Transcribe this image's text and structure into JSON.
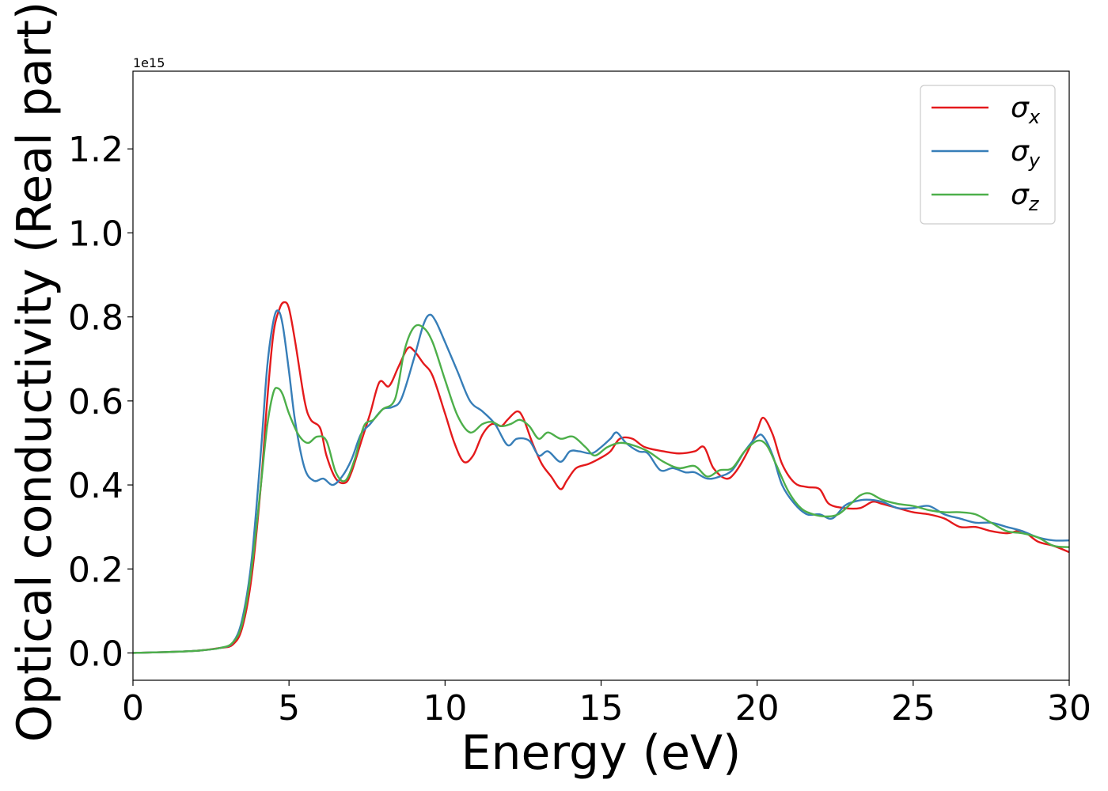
{
  "chart_data": {
    "type": "line",
    "xlabel": "Energy (eV)",
    "ylabel": "Optical conductivity (Real part)",
    "offset_text": "1e15",
    "xlim": [
      0,
      30
    ],
    "ylim": [
      -0.065,
      1.385
    ],
    "x_ticks": [
      0,
      5,
      10,
      15,
      20,
      25,
      30
    ],
    "x_tick_labels": [
      "0",
      "5",
      "10",
      "15",
      "20",
      "25",
      "30"
    ],
    "y_ticks": [
      0.0,
      0.2,
      0.4,
      0.6,
      0.8,
      1.0,
      1.2
    ],
    "y_tick_labels": [
      "0.0",
      "0.2",
      "0.4",
      "0.6",
      "0.8",
      "1.0",
      "1.2"
    ],
    "grid": false,
    "legend_position": "top-right",
    "series": [
      {
        "name": "σ",
        "subscript": "x",
        "color": "#e41a1c",
        "points": [
          [
            0,
            0
          ],
          [
            1,
            0.002
          ],
          [
            2,
            0.005
          ],
          [
            2.8,
            0.012
          ],
          [
            3.2,
            0.02
          ],
          [
            3.5,
            0.06
          ],
          [
            3.8,
            0.18
          ],
          [
            4.1,
            0.4
          ],
          [
            4.3,
            0.6
          ],
          [
            4.5,
            0.76
          ],
          [
            4.7,
            0.82
          ],
          [
            4.85,
            0.835
          ],
          [
            5.0,
            0.82
          ],
          [
            5.2,
            0.74
          ],
          [
            5.5,
            0.6
          ],
          [
            5.7,
            0.555
          ],
          [
            6.0,
            0.535
          ],
          [
            6.2,
            0.47
          ],
          [
            6.5,
            0.415
          ],
          [
            6.8,
            0.405
          ],
          [
            7.0,
            0.43
          ],
          [
            7.3,
            0.5
          ],
          [
            7.6,
            0.57
          ],
          [
            7.9,
            0.645
          ],
          [
            8.2,
            0.635
          ],
          [
            8.5,
            0.68
          ],
          [
            8.8,
            0.725
          ],
          [
            9.0,
            0.72
          ],
          [
            9.3,
            0.69
          ],
          [
            9.6,
            0.66
          ],
          [
            10.0,
            0.57
          ],
          [
            10.3,
            0.5
          ],
          [
            10.6,
            0.455
          ],
          [
            10.9,
            0.47
          ],
          [
            11.2,
            0.52
          ],
          [
            11.5,
            0.545
          ],
          [
            11.8,
            0.54
          ],
          [
            12.0,
            0.555
          ],
          [
            12.3,
            0.575
          ],
          [
            12.5,
            0.56
          ],
          [
            12.8,
            0.5
          ],
          [
            13.1,
            0.45
          ],
          [
            13.4,
            0.42
          ],
          [
            13.7,
            0.39
          ],
          [
            13.9,
            0.41
          ],
          [
            14.2,
            0.44
          ],
          [
            14.6,
            0.45
          ],
          [
            15.0,
            0.465
          ],
          [
            15.3,
            0.48
          ],
          [
            15.6,
            0.51
          ],
          [
            16.0,
            0.51
          ],
          [
            16.4,
            0.49
          ],
          [
            17.0,
            0.48
          ],
          [
            17.5,
            0.475
          ],
          [
            18.0,
            0.48
          ],
          [
            18.3,
            0.49
          ],
          [
            18.6,
            0.44
          ],
          [
            19.0,
            0.415
          ],
          [
            19.3,
            0.43
          ],
          [
            19.7,
            0.48
          ],
          [
            20.0,
            0.53
          ],
          [
            20.2,
            0.56
          ],
          [
            20.5,
            0.52
          ],
          [
            20.8,
            0.45
          ],
          [
            21.2,
            0.405
          ],
          [
            21.6,
            0.395
          ],
          [
            22.0,
            0.39
          ],
          [
            22.3,
            0.355
          ],
          [
            22.8,
            0.345
          ],
          [
            23.3,
            0.345
          ],
          [
            23.7,
            0.36
          ],
          [
            24.0,
            0.355
          ],
          [
            24.5,
            0.345
          ],
          [
            25.0,
            0.335
          ],
          [
            25.5,
            0.33
          ],
          [
            26.0,
            0.32
          ],
          [
            26.5,
            0.3
          ],
          [
            27.0,
            0.3
          ],
          [
            27.5,
            0.29
          ],
          [
            28.0,
            0.285
          ],
          [
            28.5,
            0.29
          ],
          [
            29.0,
            0.265
          ],
          [
            29.5,
            0.255
          ],
          [
            30,
            0.24
          ]
        ]
      },
      {
        "name": "σ",
        "subscript": "y",
        "color": "#377eb8",
        "points": [
          [
            0,
            0
          ],
          [
            1,
            0.002
          ],
          [
            2,
            0.005
          ],
          [
            2.8,
            0.012
          ],
          [
            3.2,
            0.025
          ],
          [
            3.5,
            0.08
          ],
          [
            3.8,
            0.22
          ],
          [
            4.1,
            0.48
          ],
          [
            4.3,
            0.68
          ],
          [
            4.5,
            0.79
          ],
          [
            4.65,
            0.815
          ],
          [
            4.8,
            0.78
          ],
          [
            5.0,
            0.67
          ],
          [
            5.2,
            0.55
          ],
          [
            5.5,
            0.44
          ],
          [
            5.8,
            0.41
          ],
          [
            6.1,
            0.415
          ],
          [
            6.4,
            0.4
          ],
          [
            6.7,
            0.42
          ],
          [
            7.0,
            0.46
          ],
          [
            7.3,
            0.52
          ],
          [
            7.6,
            0.545
          ],
          [
            8.0,
            0.58
          ],
          [
            8.3,
            0.585
          ],
          [
            8.6,
            0.605
          ],
          [
            9.0,
            0.7
          ],
          [
            9.3,
            0.78
          ],
          [
            9.5,
            0.805
          ],
          [
            9.7,
            0.79
          ],
          [
            10.0,
            0.74
          ],
          [
            10.4,
            0.67
          ],
          [
            10.8,
            0.6
          ],
          [
            11.2,
            0.575
          ],
          [
            11.6,
            0.545
          ],
          [
            12.0,
            0.495
          ],
          [
            12.3,
            0.51
          ],
          [
            12.7,
            0.505
          ],
          [
            13.0,
            0.47
          ],
          [
            13.3,
            0.48
          ],
          [
            13.7,
            0.455
          ],
          [
            14.0,
            0.48
          ],
          [
            14.3,
            0.48
          ],
          [
            14.7,
            0.475
          ],
          [
            15.0,
            0.49
          ],
          [
            15.3,
            0.51
          ],
          [
            15.5,
            0.525
          ],
          [
            15.8,
            0.5
          ],
          [
            16.2,
            0.48
          ],
          [
            16.5,
            0.475
          ],
          [
            16.9,
            0.435
          ],
          [
            17.3,
            0.44
          ],
          [
            17.7,
            0.43
          ],
          [
            18.0,
            0.43
          ],
          [
            18.4,
            0.415
          ],
          [
            18.8,
            0.42
          ],
          [
            19.2,
            0.435
          ],
          [
            19.6,
            0.48
          ],
          [
            20.0,
            0.515
          ],
          [
            20.2,
            0.515
          ],
          [
            20.5,
            0.47
          ],
          [
            20.8,
            0.4
          ],
          [
            21.2,
            0.355
          ],
          [
            21.6,
            0.33
          ],
          [
            22.0,
            0.33
          ],
          [
            22.4,
            0.32
          ],
          [
            22.8,
            0.35
          ],
          [
            23.1,
            0.36
          ],
          [
            23.5,
            0.365
          ],
          [
            24.0,
            0.36
          ],
          [
            24.5,
            0.345
          ],
          [
            25.0,
            0.345
          ],
          [
            25.5,
            0.35
          ],
          [
            26.0,
            0.33
          ],
          [
            26.5,
            0.32
          ],
          [
            27.0,
            0.31
          ],
          [
            27.5,
            0.31
          ],
          [
            28.0,
            0.3
          ],
          [
            28.5,
            0.29
          ],
          [
            29.0,
            0.275
          ],
          [
            29.5,
            0.268
          ],
          [
            30,
            0.268
          ]
        ]
      },
      {
        "name": "σ",
        "subscript": "z",
        "color": "#4daf4a",
        "points": [
          [
            0,
            0
          ],
          [
            1,
            0.002
          ],
          [
            2,
            0.005
          ],
          [
            2.8,
            0.012
          ],
          [
            3.2,
            0.025
          ],
          [
            3.5,
            0.07
          ],
          [
            3.8,
            0.2
          ],
          [
            4.1,
            0.4
          ],
          [
            4.3,
            0.54
          ],
          [
            4.5,
            0.62
          ],
          [
            4.65,
            0.63
          ],
          [
            4.8,
            0.615
          ],
          [
            5.0,
            0.57
          ],
          [
            5.3,
            0.52
          ],
          [
            5.6,
            0.5
          ],
          [
            5.9,
            0.515
          ],
          [
            6.2,
            0.505
          ],
          [
            6.5,
            0.43
          ],
          [
            6.8,
            0.41
          ],
          [
            7.1,
            0.46
          ],
          [
            7.4,
            0.54
          ],
          [
            7.7,
            0.555
          ],
          [
            8.0,
            0.58
          ],
          [
            8.4,
            0.605
          ],
          [
            8.7,
            0.72
          ],
          [
            9.0,
            0.775
          ],
          [
            9.3,
            0.775
          ],
          [
            9.6,
            0.74
          ],
          [
            10.0,
            0.65
          ],
          [
            10.4,
            0.565
          ],
          [
            10.8,
            0.525
          ],
          [
            11.2,
            0.545
          ],
          [
            11.5,
            0.55
          ],
          [
            11.8,
            0.54
          ],
          [
            12.1,
            0.545
          ],
          [
            12.4,
            0.555
          ],
          [
            12.7,
            0.54
          ],
          [
            13.0,
            0.51
          ],
          [
            13.3,
            0.525
          ],
          [
            13.7,
            0.51
          ],
          [
            14.1,
            0.515
          ],
          [
            14.5,
            0.49
          ],
          [
            14.8,
            0.47
          ],
          [
            15.2,
            0.49
          ],
          [
            15.6,
            0.5
          ],
          [
            16.0,
            0.495
          ],
          [
            16.5,
            0.48
          ],
          [
            17.0,
            0.455
          ],
          [
            17.5,
            0.44
          ],
          [
            18.0,
            0.445
          ],
          [
            18.4,
            0.42
          ],
          [
            18.8,
            0.435
          ],
          [
            19.2,
            0.44
          ],
          [
            19.6,
            0.48
          ],
          [
            20.0,
            0.505
          ],
          [
            20.3,
            0.495
          ],
          [
            20.6,
            0.45
          ],
          [
            21.0,
            0.385
          ],
          [
            21.4,
            0.345
          ],
          [
            21.8,
            0.33
          ],
          [
            22.2,
            0.325
          ],
          [
            22.6,
            0.33
          ],
          [
            23.0,
            0.355
          ],
          [
            23.3,
            0.375
          ],
          [
            23.6,
            0.38
          ],
          [
            24.0,
            0.365
          ],
          [
            24.5,
            0.355
          ],
          [
            25.0,
            0.35
          ],
          [
            25.5,
            0.34
          ],
          [
            26.0,
            0.335
          ],
          [
            26.5,
            0.335
          ],
          [
            27.0,
            0.33
          ],
          [
            27.5,
            0.31
          ],
          [
            28.0,
            0.29
          ],
          [
            28.5,
            0.285
          ],
          [
            29.0,
            0.275
          ],
          [
            29.5,
            0.255
          ],
          [
            30,
            0.252
          ]
        ]
      }
    ]
  }
}
